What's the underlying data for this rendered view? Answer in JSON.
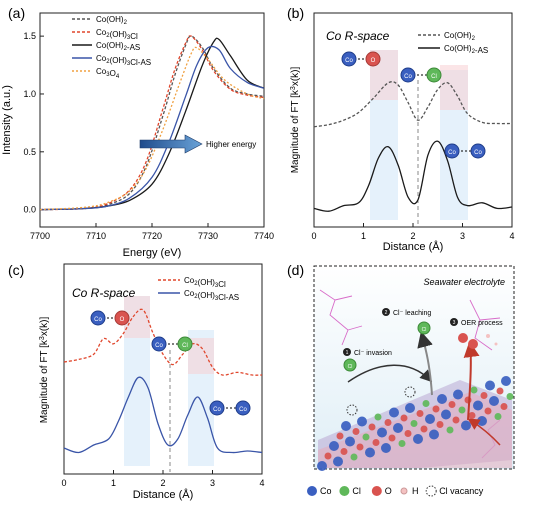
{
  "panel_a": {
    "letter": "(a)",
    "xlabel": "Energy (eV)",
    "ylabel": "Intensity (a.u.)",
    "arrow_label": "Higher energy",
    "legend": [
      {
        "pre": "Co(OH)",
        "sub": "2",
        "mid": "",
        "sub2": "",
        "post": "",
        "color": "#555555",
        "dash": "3,2"
      },
      {
        "pre": "Co",
        "sub": "2",
        "mid": "(OH)",
        "sub2": "3",
        "post": "Cl",
        "color": "#e0462c",
        "dash": "3,2"
      },
      {
        "pre": "Co(OH)",
        "sub": "2",
        "mid": "-AS",
        "sub2": "",
        "post": "",
        "color": "#1a1a1a",
        "dash": ""
      },
      {
        "pre": "Co",
        "sub": "2",
        "mid": "(OH)",
        "sub2": "3",
        "post": "Cl-AS",
        "color": "#3a55a8",
        "dash": ""
      },
      {
        "pre": "Co",
        "sub": "3",
        "mid": "O",
        "sub2": "4",
        "post": "",
        "color": "#f0a040",
        "dash": "2,2"
      }
    ]
  },
  "panel_b": {
    "letter": "(b)",
    "title": "Co R-space",
    "xlabel": "Distance (Å)",
    "ylabel_pre": "Magnitude of FT [k",
    "ylabel_sup": "3",
    "ylabel_post": "x(k)]",
    "legend": [
      {
        "pre": "Co(OH)",
        "sub": "2",
        "post": "",
        "color": "#555555",
        "dash": "3,2"
      },
      {
        "pre": "Co(OH)",
        "sub": "2",
        "post": "-AS",
        "color": "#1a1a1a",
        "dash": ""
      }
    ],
    "atom_co": "Co",
    "atom_o": "O",
    "atom_cl": "Cl"
  },
  "panel_c": {
    "letter": "(c)",
    "title": "Co R-space",
    "xlabel": "Distance (Å)",
    "ylabel_pre": "Magnitude of FT [k",
    "ylabel_sup": "3",
    "ylabel_post": "x(k)]",
    "legend": [
      {
        "pre": "Co",
        "sub": "2",
        "mid": "(OH)",
        "sub2": "3",
        "post": "Cl",
        "color": "#e0462c",
        "dash": "3,2"
      },
      {
        "pre": "Co",
        "sub": "2",
        "mid": "(OH)",
        "sub2": "3",
        "post": "Cl-AS",
        "color": "#3a55a8",
        "dash": ""
      }
    ],
    "atom_co": "Co",
    "atom_o": "O",
    "atom_cl": "Cl"
  },
  "panel_d": {
    "letter": "(d)",
    "caption": "Seawater electrolyte",
    "step1_num": "1",
    "step1": "Cl⁻ invasion",
    "step2_num": "2",
    "step2": "Cl⁻ leaching",
    "step3_num": "3",
    "step3": "OER process",
    "atom_cl": "Cl",
    "legend": [
      {
        "label": "Co",
        "color": "#3a5fc0",
        "kind": "dot"
      },
      {
        "label": "Cl",
        "color": "#5fb85a",
        "kind": "dot"
      },
      {
        "label": "O",
        "color": "#d9534f",
        "kind": "dot"
      },
      {
        "label": "H",
        "color": "#f4c2c2",
        "kind": "small"
      },
      {
        "label": "Cl vacancy",
        "color": "#333333",
        "kind": "dashed"
      }
    ]
  },
  "chart_data": [
    {
      "type": "line",
      "xlabel": "Energy (eV)",
      "ylabel": "Intensity (a.u.)",
      "xlim": [
        7700,
        7740
      ],
      "ylim": [
        -0.15,
        1.7
      ],
      "xticks": [
        7700,
        7710,
        7720,
        7730,
        7740
      ],
      "yticks": [
        "0.0",
        "0.5",
        "1.0",
        "1.5"
      ],
      "series": [
        {
          "name": "Co(OH)2",
          "x": [
            7700,
            7708,
            7712,
            7716,
            7719,
            7722,
            7724,
            7726,
            7727,
            7729,
            7731,
            7734,
            7737,
            7740
          ],
          "y": [
            0.0,
            0.01,
            0.04,
            0.14,
            0.38,
            0.82,
            1.15,
            1.42,
            1.5,
            1.4,
            1.22,
            1.05,
            1.0,
            0.98
          ]
        },
        {
          "name": "Co2(OH)3Cl",
          "x": [
            7700,
            7708,
            7712,
            7716,
            7719,
            7722,
            7724,
            7726,
            7727,
            7729,
            7731,
            7734,
            7737,
            7740
          ],
          "y": [
            0.0,
            0.01,
            0.05,
            0.17,
            0.42,
            0.88,
            1.2,
            1.44,
            1.5,
            1.38,
            1.2,
            1.04,
            0.99,
            0.97
          ]
        },
        {
          "name": "Co(OH)2-AS",
          "x": [
            7700,
            7708,
            7712,
            7716,
            7720,
            7723,
            7726,
            7729,
            7731,
            7732,
            7734,
            7737,
            7740
          ],
          "y": [
            0.0,
            0.01,
            0.03,
            0.08,
            0.22,
            0.48,
            0.85,
            1.25,
            1.45,
            1.47,
            1.33,
            1.12,
            1.05
          ]
        },
        {
          "name": "Co2(OH)3Cl-AS",
          "x": [
            7700,
            7708,
            7712,
            7716,
            7720,
            7723,
            7726,
            7728,
            7730,
            7732,
            7734,
            7737,
            7740
          ],
          "y": [
            0.0,
            0.01,
            0.03,
            0.1,
            0.28,
            0.58,
            0.98,
            1.25,
            1.4,
            1.38,
            1.22,
            1.1,
            1.05
          ]
        },
        {
          "name": "Co3O4",
          "x": [
            7700,
            7708,
            7712,
            7716,
            7719,
            7722,
            7725,
            7727,
            7728,
            7730,
            7733,
            7737,
            7740
          ],
          "y": [
            0.0,
            0.02,
            0.06,
            0.16,
            0.36,
            0.7,
            1.1,
            1.35,
            1.4,
            1.3,
            1.12,
            1.0,
            0.96
          ]
        }
      ]
    },
    {
      "type": "line",
      "title": "Co R-space",
      "xlabel": "Distance (Å)",
      "ylabel": "Magnitude of FT [k3x(k)]",
      "xlim": [
        0,
        4
      ],
      "xticks": [
        0,
        1,
        2,
        3,
        4
      ],
      "series": [
        {
          "name": "Co(OH)2",
          "x": [
            0.0,
            0.3,
            0.6,
            0.9,
            1.2,
            1.5,
            1.7,
            1.9,
            2.1,
            2.3,
            2.5,
            2.7,
            2.9,
            3.1,
            3.4,
            3.7,
            4.0
          ],
          "y": [
            0.52,
            0.54,
            0.58,
            0.65,
            0.78,
            0.92,
            0.9,
            0.74,
            0.58,
            0.7,
            0.86,
            0.92,
            0.8,
            0.64,
            0.56,
            0.55,
            0.55
          ]
        },
        {
          "name": "Co(OH)2-AS",
          "x": [
            0.0,
            0.3,
            0.6,
            0.9,
            1.1,
            1.3,
            1.5,
            1.7,
            1.9,
            2.1,
            2.3,
            2.5,
            2.7,
            2.9,
            3.1,
            3.4,
            3.7,
            4.0
          ],
          "y": [
            0.04,
            0.02,
            0.06,
            0.08,
            0.2,
            0.4,
            0.48,
            0.35,
            0.12,
            0.1,
            0.42,
            0.52,
            0.38,
            0.12,
            0.06,
            0.08,
            0.04,
            0.05
          ]
        }
      ]
    },
    {
      "type": "line",
      "title": "Co R-space",
      "xlabel": "Distance (Å)",
      "ylabel": "Magnitude of FT [k3x(k)]",
      "xlim": [
        0,
        4
      ],
      "xticks": [
        0,
        1,
        2,
        3,
        4
      ],
      "series": [
        {
          "name": "Co2(OH)3Cl",
          "x": [
            0.0,
            0.3,
            0.6,
            0.8,
            1.0,
            1.2,
            1.4,
            1.6,
            1.8,
            2.0,
            2.2,
            2.4,
            2.6,
            2.8,
            3.0,
            3.2,
            3.5,
            3.8,
            4.0
          ],
          "y": [
            0.6,
            0.62,
            0.66,
            0.78,
            0.74,
            0.82,
            0.95,
            1.0,
            0.82,
            0.66,
            0.58,
            0.66,
            0.74,
            0.7,
            0.56,
            0.5,
            0.52,
            0.5,
            0.5
          ]
        },
        {
          "name": "Co2(OH)3Cl-AS",
          "x": [
            0.0,
            0.3,
            0.6,
            0.9,
            1.1,
            1.3,
            1.5,
            1.7,
            1.9,
            2.1,
            2.3,
            2.5,
            2.7,
            2.9,
            3.1,
            3.4,
            3.7,
            4.0
          ],
          "y": [
            0.08,
            0.05,
            0.1,
            0.14,
            0.26,
            0.42,
            0.55,
            0.48,
            0.24,
            0.1,
            0.14,
            0.3,
            0.42,
            0.28,
            0.08,
            0.05,
            0.06,
            0.05
          ]
        }
      ]
    }
  ]
}
